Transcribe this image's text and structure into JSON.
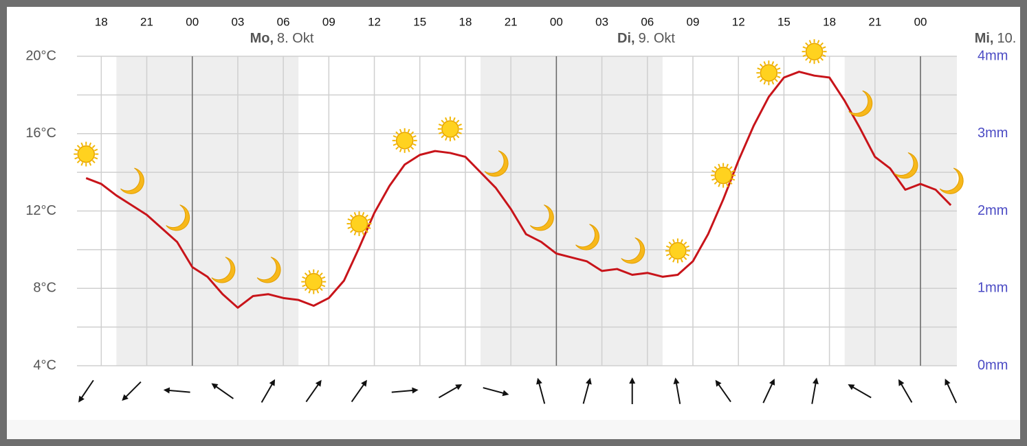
{
  "chart_data": {
    "type": "line",
    "x": [
      -7,
      -6,
      -5,
      -4,
      -3,
      -2,
      -1,
      0,
      1,
      2,
      3,
      4,
      5,
      6,
      7,
      8,
      9,
      10,
      11,
      12,
      13,
      14,
      15,
      16,
      17,
      18,
      19,
      20,
      21,
      22,
      23,
      24,
      25,
      26,
      27,
      28,
      29,
      30,
      31,
      32,
      33,
      34,
      35,
      36,
      37,
      38,
      39,
      40,
      41,
      42,
      43,
      44,
      45,
      46,
      47,
      48,
      49,
      50
    ],
    "series": [
      {
        "color": "#c8141a",
        "values": [
          13.7,
          13.4,
          12.8,
          12.3,
          11.8,
          11.1,
          10.4,
          9.1,
          8.6,
          7.7,
          7.0,
          7.6,
          7.7,
          7.5,
          7.4,
          7.1,
          7.5,
          8.4,
          10.1,
          11.9,
          13.3,
          14.4,
          14.9,
          15.1,
          15.0,
          14.8,
          14.0,
          13.2,
          12.1,
          10.8,
          10.4,
          9.8,
          9.6,
          9.4,
          8.9,
          9.0,
          8.7,
          8.8,
          8.6,
          8.7,
          9.4,
          10.8,
          12.6,
          14.6,
          16.4,
          17.9,
          18.9,
          19.2,
          19.0,
          18.9,
          17.7,
          16.3,
          14.8,
          14.2,
          13.1,
          13.4,
          13.1,
          12.3
        ]
      }
    ],
    "xlim": [
      -7.6,
      50.4
    ],
    "xticks": [
      {
        "value": -6,
        "label": "18"
      },
      {
        "value": -3,
        "label": "21"
      },
      {
        "value": 0,
        "label": "00"
      },
      {
        "value": 3,
        "label": "03"
      },
      {
        "value": 6,
        "label": "06"
      },
      {
        "value": 9,
        "label": "09"
      },
      {
        "value": 12,
        "label": "12"
      },
      {
        "value": 15,
        "label": "15"
      },
      {
        "value": 18,
        "label": "18"
      },
      {
        "value": 21,
        "label": "21"
      },
      {
        "value": 24,
        "label": "00"
      },
      {
        "value": 27,
        "label": "03"
      },
      {
        "value": 30,
        "label": "06"
      },
      {
        "value": 33,
        "label": "09"
      },
      {
        "value": 36,
        "label": "12"
      },
      {
        "value": 39,
        "label": "15"
      },
      {
        "value": 42,
        "label": "18"
      },
      {
        "value": 45,
        "label": "21"
      },
      {
        "value": 48,
        "label": "00"
      }
    ],
    "day_lines": [
      0,
      24,
      48
    ],
    "day_labels": [
      {
        "weekday": "Mo,",
        "date": "8. Okt"
      },
      {
        "weekday": "Di,",
        "date": "9. Okt"
      },
      {
        "weekday": "Mi,",
        "date": "10."
      }
    ],
    "night": [
      [
        -5,
        7
      ],
      [
        19,
        31
      ],
      [
        43,
        50.4
      ]
    ],
    "ylim": [
      4,
      20
    ],
    "yticks": [
      {
        "value": 4,
        "label": "4°C"
      },
      {
        "value": 8,
        "label": "8°C"
      },
      {
        "value": 12,
        "label": "12°C"
      },
      {
        "value": 16,
        "label": "16°C"
      },
      {
        "value": 20,
        "label": "20°C"
      }
    ],
    "minor_yticks": [
      6,
      10,
      14,
      18
    ],
    "y2lim": [
      0,
      4
    ],
    "y2ticks": [
      {
        "value": 0,
        "label": "0mm"
      },
      {
        "value": 1,
        "label": "1mm"
      },
      {
        "value": 2,
        "label": "2mm"
      },
      {
        "value": 3,
        "label": "3mm"
      },
      {
        "value": 4,
        "label": "4mm"
      }
    ],
    "condition_x": [
      -7,
      -4,
      -1,
      2,
      5,
      8,
      11,
      14,
      17,
      20,
      23,
      26,
      29,
      32,
      35,
      38,
      41,
      44,
      47,
      50
    ],
    "conditions": [
      "sun",
      "moon",
      "moon",
      "moon",
      "moon",
      "sun",
      "sun",
      "sun",
      "sun",
      "moon",
      "moon",
      "moon",
      "moon",
      "sun",
      "sun",
      "sun",
      "sun",
      "moon",
      "moon",
      "moon"
    ],
    "wind_direction": [
      214,
      225,
      275,
      305,
      30,
      35,
      35,
      85,
      60,
      105,
      345,
      15,
      0,
      350,
      325,
      25,
      10,
      300,
      330,
      335
    ],
    "grid": true
  }
}
